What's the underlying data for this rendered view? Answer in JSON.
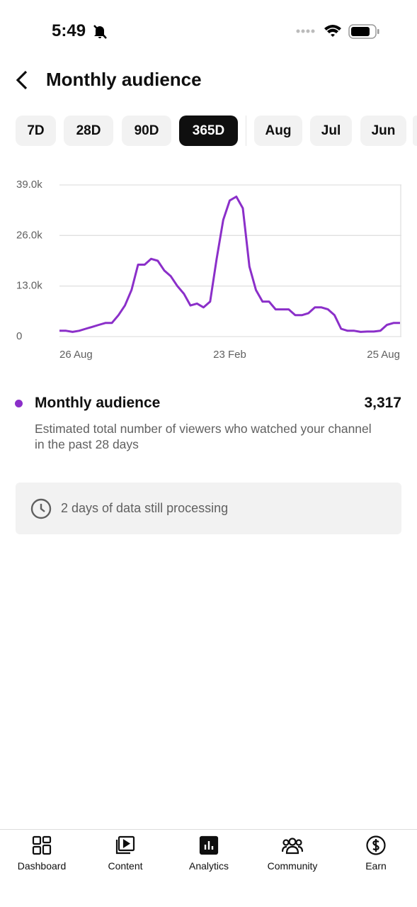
{
  "status_bar": {
    "time": "5:49"
  },
  "header": {
    "title": "Monthly audience"
  },
  "tabs": {
    "items": [
      "7D",
      "28D",
      "90D",
      "365D",
      "Aug",
      "Jul",
      "Jun"
    ],
    "selected": 3
  },
  "chart_data": {
    "type": "line",
    "x": [
      "26 Aug",
      null,
      null,
      null,
      null,
      null,
      null,
      null,
      null,
      null,
      null,
      null,
      null,
      null,
      null,
      null,
      null,
      null,
      null,
      null,
      null,
      null,
      null,
      null,
      null,
      null,
      "23 Feb",
      null,
      null,
      null,
      null,
      null,
      null,
      null,
      null,
      null,
      null,
      null,
      null,
      null,
      null,
      null,
      null,
      null,
      null,
      null,
      null,
      null,
      null,
      null,
      null,
      null,
      "25 Aug"
    ],
    "series": [
      {
        "name": "Monthly audience",
        "color": "#8b2fc9",
        "values": [
          1500,
          1500,
          1200,
          1500,
          2000,
          2500,
          3000,
          3500,
          3500,
          5500,
          8000,
          12000,
          18500,
          18500,
          20000,
          19500,
          17000,
          15500,
          13000,
          11000,
          8000,
          8500,
          7500,
          9000,
          20000,
          30000,
          35000,
          36000,
          33000,
          18000,
          12000,
          9000,
          9000,
          7000,
          7000,
          7000,
          5500,
          5500,
          6000,
          7500,
          7500,
          7000,
          5500,
          2000,
          1500,
          1500,
          1200,
          1300,
          1300,
          1500,
          3000,
          3500,
          3500
        ]
      }
    ],
    "ylim": [
      0,
      39000
    ],
    "yticks": [
      0,
      {
        "value": 13000,
        "label": "13.0k"
      },
      {
        "value": 26000,
        "label": "26.0k"
      },
      {
        "value": 39000,
        "label": "39.0k"
      }
    ],
    "grid": true
  },
  "summary": {
    "value": "3,317",
    "description": "Estimated total number of viewers who watched your channel in the past 28 days"
  },
  "notice": {
    "text": "2 days of data still processing"
  },
  "nav": [
    "Dashboard",
    "Content",
    "Analytics",
    "Community",
    "Earn"
  ]
}
